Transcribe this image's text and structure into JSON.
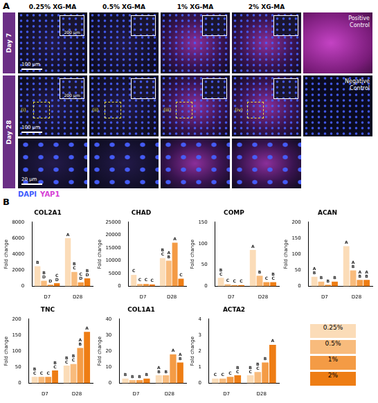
{
  "panel_a": {
    "label": "A",
    "columns": [
      "0.25% XG-MA",
      "0.5% XG-MA",
      "1% XG-MA",
      "2% XG-MA"
    ],
    "rows": [
      "Day 7",
      "Day 28"
    ],
    "controls": [
      "Positive Control",
      "Negative Control"
    ],
    "scale_bars": {
      "main": "100 µm",
      "inset": "200 µm",
      "zoom": "20 µm"
    },
    "regions": [
      "(i)",
      "(ii)",
      "(iii)",
      "(iv)"
    ],
    "stain_legend": [
      {
        "name": "DAPI",
        "color": "#3d5afe"
      },
      {
        "name": "YAP1",
        "color": "#d63fd6"
      }
    ]
  },
  "panel_b_label": "B",
  "chart_data": [
    {
      "type": "bar",
      "title": "COL2A1",
      "y_label": "Fold change",
      "categories": [
        "D7",
        "D28"
      ],
      "ylim": [
        0,
        8000
      ],
      "yticks": [
        0,
        2000,
        4000,
        6000,
        8000
      ],
      "grid": false,
      "series": [
        {
          "name": "0.25%",
          "color": "#fbdcb8",
          "values": [
            2500,
            6000
          ],
          "sig_letters": [
            "B",
            "A"
          ]
        },
        {
          "name": "0.5%",
          "color": "#f8bb7c",
          "values": [
            700,
            1800
          ],
          "sig_letters": [
            "BD",
            "BC"
          ]
        },
        {
          "name": "1%",
          "color": "#f49b45",
          "values": [
            200,
            500
          ],
          "sig_letters": [
            "D",
            "CD"
          ]
        },
        {
          "name": "2%",
          "color": "#ee7d14",
          "values": [
            400,
            1000
          ],
          "sig_letters": [
            "CD",
            "BD"
          ]
        }
      ]
    },
    {
      "type": "bar",
      "title": "CHAD",
      "y_label": "Fold change",
      "categories": [
        "D7",
        "D28"
      ],
      "ylim": [
        0,
        25000
      ],
      "yticks": [
        0,
        5000,
        10000,
        15000,
        20000,
        25000
      ],
      "grid": false,
      "series": [
        {
          "name": "0.25%",
          "color": "#fbdcb8",
          "values": [
            4500,
            11000
          ],
          "sig_letters": [
            "C",
            "BC"
          ]
        },
        {
          "name": "0.5%",
          "color": "#f8bb7c",
          "values": [
            1000,
            10000
          ],
          "sig_letters": [
            "C",
            "AB"
          ]
        },
        {
          "name": "1%",
          "color": "#f49b45",
          "values": [
            1000,
            17000
          ],
          "sig_letters": [
            "C",
            "A"
          ]
        },
        {
          "name": "2%",
          "color": "#ee7d14",
          "values": [
            800,
            3000
          ],
          "sig_letters": [
            "C",
            "C"
          ]
        }
      ]
    },
    {
      "type": "bar",
      "title": "COMP",
      "y_label": "Fold change",
      "categories": [
        "D7",
        "D28"
      ],
      "ylim": [
        0,
        150
      ],
      "yticks": [
        0,
        50,
        100,
        150
      ],
      "grid": false,
      "series": [
        {
          "name": "0.25%",
          "color": "#fbdcb8",
          "values": [
            20,
            85
          ],
          "sig_letters": [
            "BC",
            "A"
          ]
        },
        {
          "name": "0.5%",
          "color": "#f8bb7c",
          "values": [
            5,
            25
          ],
          "sig_letters": [
            "C",
            "B"
          ]
        },
        {
          "name": "1%",
          "color": "#f49b45",
          "values": [
            3,
            10
          ],
          "sig_letters": [
            "C",
            "C"
          ]
        },
        {
          "name": "2%",
          "color": "#ee7d14",
          "values": [
            3,
            10
          ],
          "sig_letters": [
            "C",
            "BC"
          ]
        }
      ]
    },
    {
      "type": "bar",
      "title": "ACAN",
      "y_label": "Fold change",
      "categories": [
        "D7",
        "D28"
      ],
      "ylim": [
        0,
        200
      ],
      "yticks": [
        0,
        50,
        100,
        150,
        200
      ],
      "grid": false,
      "series": [
        {
          "name": "0.25%",
          "color": "#fbdcb8",
          "values": [
            30,
            125
          ],
          "sig_letters": [
            "AB",
            "A"
          ]
        },
        {
          "name": "0.5%",
          "color": "#f8bb7c",
          "values": [
            15,
            50
          ],
          "sig_letters": [
            "B",
            "AB"
          ]
        },
        {
          "name": "1%",
          "color": "#f49b45",
          "values": [
            5,
            20
          ],
          "sig_letters": [
            "B",
            "AB"
          ]
        },
        {
          "name": "2%",
          "color": "#ee7d14",
          "values": [
            15,
            20
          ],
          "sig_letters": [
            "B",
            "AB"
          ]
        }
      ]
    },
    {
      "type": "bar",
      "title": "TNC",
      "y_label": "Fold change",
      "categories": [
        "D7",
        "D28"
      ],
      "ylim": [
        0,
        200
      ],
      "yticks": [
        0,
        50,
        100,
        150,
        200
      ],
      "grid": false,
      "series": [
        {
          "name": "0.25%",
          "color": "#fbdcb8",
          "values": [
            20,
            55
          ],
          "sig_letters": [
            "BC",
            "BC"
          ]
        },
        {
          "name": "0.5%",
          "color": "#f8bb7c",
          "values": [
            20,
            60
          ],
          "sig_letters": [
            "C",
            "BC"
          ]
        },
        {
          "name": "1%",
          "color": "#f49b45",
          "values": [
            20,
            110
          ],
          "sig_letters": [
            "C",
            "AB"
          ]
        },
        {
          "name": "2%",
          "color": "#ee7d14",
          "values": [
            40,
            160
          ],
          "sig_letters": [
            "BC",
            "A"
          ]
        }
      ]
    },
    {
      "type": "bar",
      "title": "COL1A1",
      "y_label": "Fold change",
      "categories": [
        "D7",
        "D28"
      ],
      "ylim": [
        0,
        40
      ],
      "yticks": [
        0,
        10,
        20,
        30,
        40
      ],
      "grid": false,
      "series": [
        {
          "name": "0.25%",
          "color": "#fbdcb8",
          "values": [
            3,
            5
          ],
          "sig_letters": [
            "B",
            "AB"
          ]
        },
        {
          "name": "0.5%",
          "color": "#f8bb7c",
          "values": [
            2,
            5
          ],
          "sig_letters": [
            "B",
            "B"
          ]
        },
        {
          "name": "1%",
          "color": "#f49b45",
          "values": [
            2,
            18
          ],
          "sig_letters": [
            "B",
            "A"
          ]
        },
        {
          "name": "2%",
          "color": "#ee7d14",
          "values": [
            3,
            13
          ],
          "sig_letters": [
            "B",
            "AB"
          ]
        }
      ]
    },
    {
      "type": "bar",
      "title": "ACTA2",
      "y_label": "Fold change",
      "categories": [
        "D7",
        "D28"
      ],
      "ylim": [
        0,
        4
      ],
      "yticks": [
        0,
        1,
        2,
        3,
        4
      ],
      "grid": false,
      "legend": "right",
      "series": [
        {
          "name": "0.25%",
          "color": "#fbdcb8",
          "values": [
            0.3,
            0.5
          ],
          "sig_letters": [
            "C",
            "BC"
          ]
        },
        {
          "name": "0.5%",
          "color": "#f8bb7c",
          "values": [
            0.3,
            0.7
          ],
          "sig_letters": [
            "C",
            "BC"
          ]
        },
        {
          "name": "1%",
          "color": "#f49b45",
          "values": [
            0.4,
            1.3
          ],
          "sig_letters": [
            "C",
            "B"
          ]
        },
        {
          "name": "2%",
          "color": "#ee7d14",
          "values": [
            0.5,
            2.4
          ],
          "sig_letters": [
            "BC",
            "A"
          ]
        }
      ]
    }
  ]
}
